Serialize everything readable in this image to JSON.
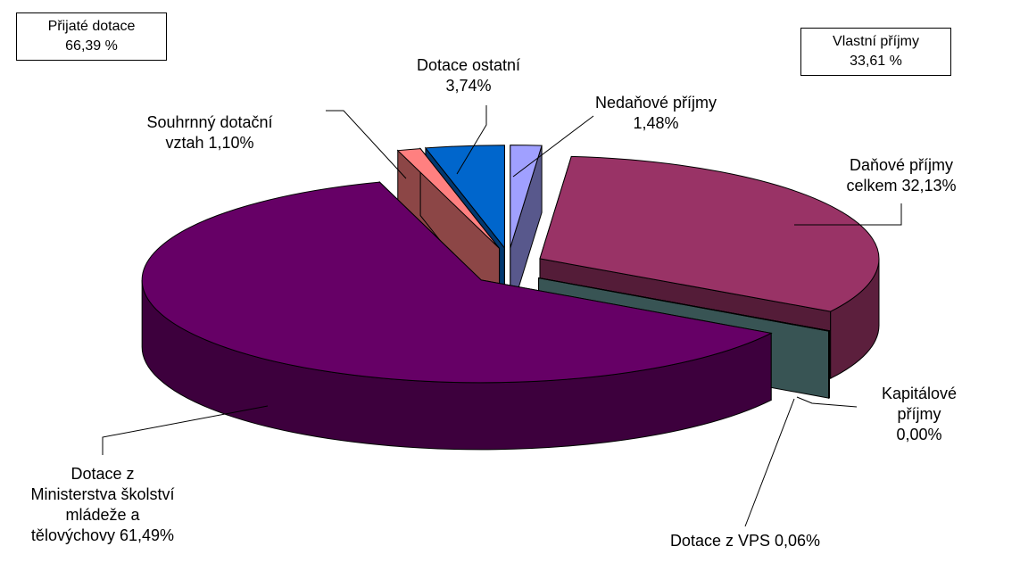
{
  "chart_data": {
    "type": "pie",
    "categories": [
      "Nedaňové příjmy",
      "Daňové příjmy\ncelkem",
      "Kapitálové příjmy",
      "Dotace z VPS",
      "Dotace z\nMinisterstva školství\nmládeže a\ntělovýchovy",
      "Souhrnný dotační\nvztah",
      "Dotace ostatní"
    ],
    "values": [
      1.48,
      32.13,
      0.0,
      0.06,
      61.49,
      1.1,
      3.74
    ],
    "value_labels": [
      "1,48%",
      "32,13%",
      "0,00%",
      "0,06%",
      "61,49%",
      "1,10%",
      "3,74%"
    ],
    "colors": [
      "#a0a0ff",
      "#993366",
      "#ffffcc",
      "#669999",
      "#660066",
      "#ff8080",
      "#0066cc"
    ],
    "annotations": [
      [
        "Přijaté dotace",
        "66,39 %"
      ],
      [
        "Vlastní příjmy",
        "33,61 %"
      ]
    ]
  }
}
